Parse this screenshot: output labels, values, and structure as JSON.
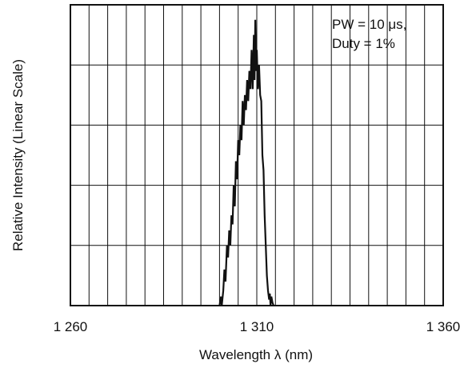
{
  "chart_data": {
    "type": "line",
    "title": "",
    "xlabel": "Wavelength  λ (nm)",
    "ylabel": "Relative Intensity (Linear Scale)",
    "xlim": [
      1260,
      1360
    ],
    "ylim": [
      0,
      1
    ],
    "x_ticks": [
      1260,
      1310,
      1360
    ],
    "x_tick_labels": [
      "1 260",
      "1 310",
      "1 360"
    ],
    "x_grid_step": 5,
    "y_grid_step": 0.2,
    "y_tick_labels_shown": false,
    "grid": true,
    "legend": "none",
    "annotation": {
      "lines": [
        "PW = 10 μs,",
        "Duty = 1%"
      ],
      "position": "top-right"
    },
    "series": [
      {
        "color": "#111111",
        "x": [
          1300.0,
          1300.4,
          1300.6,
          1301.0,
          1301.3,
          1301.6,
          1302.0,
          1302.3,
          1302.6,
          1302.9,
          1303.2,
          1303.5,
          1303.8,
          1304.1,
          1304.4,
          1304.7,
          1305.0,
          1305.3,
          1305.6,
          1305.9,
          1306.2,
          1306.5,
          1306.8,
          1307.1,
          1307.4,
          1307.7,
          1308.0,
          1308.3,
          1308.6,
          1308.9,
          1309.2,
          1309.4,
          1309.6,
          1309.8,
          1310.0,
          1310.3,
          1310.6,
          1310.9,
          1311.2,
          1311.5,
          1311.8,
          1312.1,
          1312.4,
          1312.7,
          1313.0,
          1313.3,
          1313.5,
          1313.7,
          1313.9,
          1314.2,
          1314.5
        ],
        "y": [
          0.0,
          0.03,
          0.0,
          0.05,
          0.12,
          0.08,
          0.2,
          0.16,
          0.25,
          0.2,
          0.3,
          0.27,
          0.4,
          0.33,
          0.48,
          0.42,
          0.55,
          0.5,
          0.6,
          0.55,
          0.68,
          0.6,
          0.7,
          0.65,
          0.75,
          0.68,
          0.78,
          0.72,
          0.85,
          0.72,
          0.9,
          0.75,
          0.95,
          0.78,
          0.85,
          0.72,
          0.8,
          0.7,
          0.68,
          0.5,
          0.45,
          0.3,
          0.2,
          0.1,
          0.05,
          0.02,
          0.04,
          0.0,
          0.03,
          0.01,
          0.0
        ]
      }
    ]
  }
}
